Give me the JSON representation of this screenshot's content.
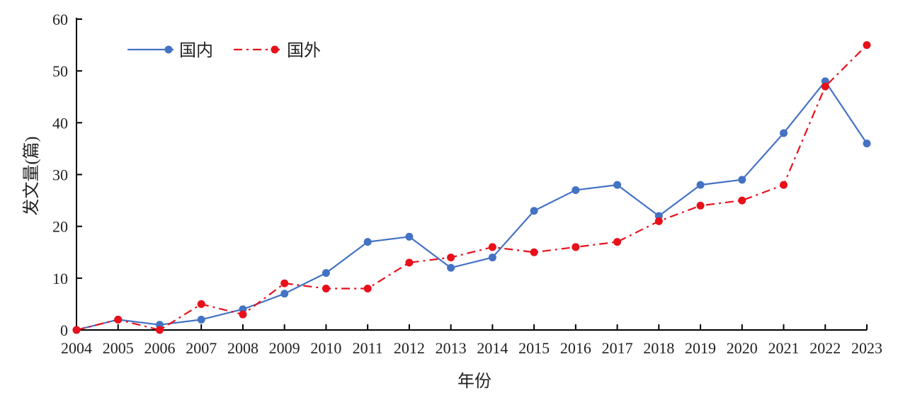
{
  "chart_data": {
    "type": "line",
    "title": "",
    "xlabel": "年份",
    "ylabel": "发文量(篇)",
    "ylim": [
      0,
      60
    ],
    "yticks": [
      0,
      10,
      20,
      30,
      40,
      50,
      60
    ],
    "x": [
      "2004",
      "2005",
      "2006",
      "2007",
      "2008",
      "2009",
      "2010",
      "2011",
      "2012",
      "2013",
      "2014",
      "2015",
      "2016",
      "2017",
      "2018",
      "2019",
      "2020",
      "2021",
      "2022",
      "2023"
    ],
    "series": [
      {
        "name": "国内",
        "color": "#4472C4",
        "line_style": "solid",
        "marker": "circle",
        "values": [
          0,
          2,
          1,
          2,
          4,
          7,
          11,
          17,
          18,
          12,
          14,
          23,
          27,
          28,
          22,
          28,
          29,
          38,
          48,
          36
        ]
      },
      {
        "name": "国外",
        "color": "#E8101A",
        "line_style": "dash-dot",
        "marker": "circle",
        "values": [
          0,
          2,
          0,
          5,
          3,
          9,
          8,
          8,
          13,
          14,
          16,
          15,
          16,
          17,
          21,
          24,
          25,
          28,
          47,
          55
        ]
      }
    ],
    "legend_position": "top-left",
    "grid": false
  }
}
